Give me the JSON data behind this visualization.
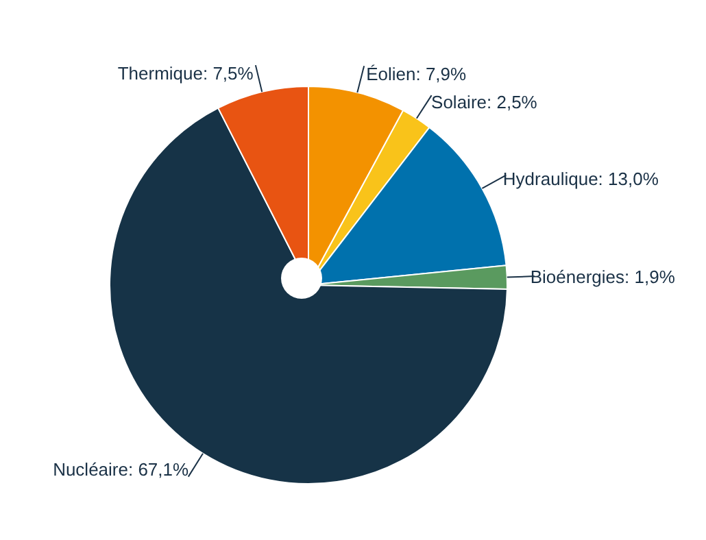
{
  "chart_data": {
    "type": "pie",
    "categories": [
      "Éolien",
      "Solaire",
      "Hydraulique",
      "Bioénergies",
      "Nucléaire",
      "Thermique"
    ],
    "values": [
      7.9,
      2.5,
      13.0,
      1.9,
      67.1,
      7.5
    ],
    "colors": [
      "#f39200",
      "#f9c31a",
      "#0071ad",
      "#5a9a5f",
      "#163347",
      "#e85412"
    ],
    "value_labels": [
      "7,9%",
      "2,5%",
      "13,0%",
      "1,9%",
      "67,1%",
      "7,5%"
    ]
  }
}
